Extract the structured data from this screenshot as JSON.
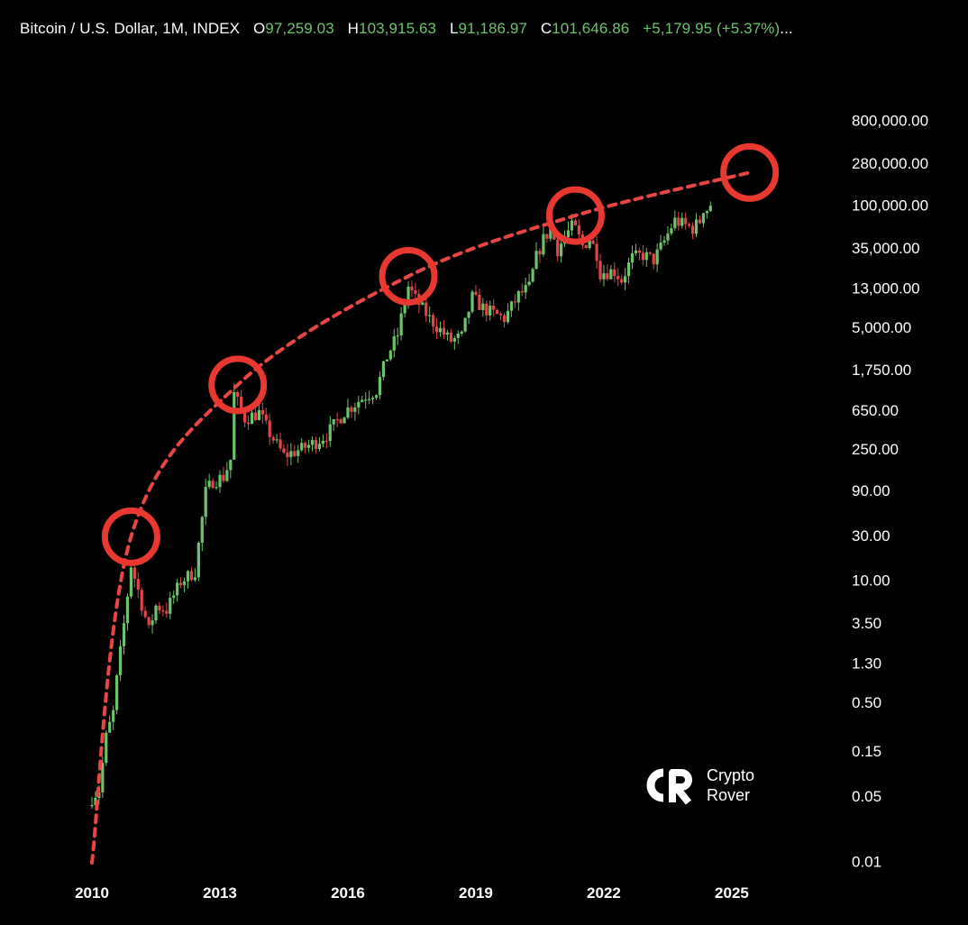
{
  "header": {
    "title": "Bitcoin / U.S. Dollar, 1M, INDEX",
    "open_label": "O",
    "open": "97,259.03",
    "high_label": "H",
    "high": "103,915.63",
    "low_label": "L",
    "low": "91,186.97",
    "close_label": "C",
    "close": "101,646.86",
    "change": "+5,179.95 (+5.37%)",
    "more": "..."
  },
  "logo": {
    "line1": "Crypto",
    "line2": "Rover"
  },
  "colors": {
    "background": "#000000",
    "up": "#6cc36a",
    "down": "#e0464a",
    "curve": "#e84545",
    "circle": "#e8382f"
  },
  "chart_data": {
    "type": "candlestick",
    "scale": "log",
    "grid": false,
    "x_tick_labels": [
      "2010",
      "2013",
      "2016",
      "2019",
      "2022",
      "2025"
    ],
    "y_tick_labels": [
      "800,000.00",
      "280,000.00",
      "100,000.00",
      "35,000.00",
      "13,000.00",
      "5,000.00",
      "1,750.00",
      "650.00",
      "250.00",
      "90.00",
      "30.00",
      "10.00",
      "3.50",
      "1.30",
      "0.50",
      "0.15",
      "0.05",
      "0.01"
    ],
    "price_anchors": [
      [
        "2010-07",
        0.05
      ],
      [
        "2010-09",
        0.06
      ],
      [
        "2010-11",
        0.22
      ],
      [
        "2011-01",
        0.4
      ],
      [
        "2011-02",
        0.9
      ],
      [
        "2011-04",
        3.5
      ],
      [
        "2011-06",
        15
      ],
      [
        "2011-08",
        8
      ],
      [
        "2011-11",
        3
      ],
      [
        "2012-01",
        5.5
      ],
      [
        "2012-04",
        5
      ],
      [
        "2012-08",
        10
      ],
      [
        "2012-12",
        13
      ],
      [
        "2013-03",
        90
      ],
      [
        "2013-05",
        120
      ],
      [
        "2013-08",
        130
      ],
      [
        "2013-10",
        200
      ],
      [
        "2013-11",
        1000
      ],
      [
        "2014-02",
        550
      ],
      [
        "2014-06",
        630
      ],
      [
        "2014-09",
        380
      ],
      [
        "2015-01",
        220
      ],
      [
        "2015-06",
        260
      ],
      [
        "2015-10",
        310
      ],
      [
        "2016-01",
        370
      ],
      [
        "2016-06",
        650
      ],
      [
        "2016-12",
        960
      ],
      [
        "2017-03",
        1100
      ],
      [
        "2017-06",
        2500
      ],
      [
        "2017-09",
        4300
      ],
      [
        "2017-11",
        10000
      ],
      [
        "2017-12",
        14000
      ],
      [
        "2018-02",
        10300
      ],
      [
        "2018-06",
        6400
      ],
      [
        "2018-11",
        4000
      ],
      [
        "2018-12",
        3700
      ],
      [
        "2019-03",
        4100
      ],
      [
        "2019-06",
        10800
      ],
      [
        "2019-09",
        8300
      ],
      [
        "2019-12",
        7200
      ],
      [
        "2020-03",
        6400
      ],
      [
        "2020-07",
        11300
      ],
      [
        "2020-10",
        13800
      ],
      [
        "2020-12",
        29000
      ],
      [
        "2021-02",
        45000
      ],
      [
        "2021-04",
        57000
      ],
      [
        "2021-06",
        35000
      ],
      [
        "2021-08",
        47000
      ],
      [
        "2021-10",
        61000
      ],
      [
        "2021-11",
        57000
      ],
      [
        "2022-01",
        38000
      ],
      [
        "2022-03",
        45500
      ],
      [
        "2022-05",
        31800
      ],
      [
        "2022-06",
        19900
      ],
      [
        "2022-10",
        20500
      ],
      [
        "2022-12",
        16500
      ],
      [
        "2023-03",
        28500
      ],
      [
        "2023-06",
        30500
      ],
      [
        "2023-09",
        27000
      ],
      [
        "2023-12",
        42500
      ],
      [
        "2024-02",
        61000
      ],
      [
        "2024-03",
        71000
      ],
      [
        "2024-06",
        62700
      ],
      [
        "2024-08",
        59000
      ],
      [
        "2024-10",
        70000
      ],
      [
        "2024-11",
        96400
      ],
      [
        "2024-12",
        93400
      ],
      [
        "2025-01",
        101646.86
      ]
    ],
    "trend_curve": [
      [
        "2010-07",
        0.01
      ],
      [
        "2011-06",
        30
      ],
      [
        "2013-12",
        1250
      ],
      [
        "2017-12",
        18000
      ],
      [
        "2021-11",
        80000
      ],
      [
        "2025-12",
        230000
      ]
    ],
    "circled_points": [
      [
        "2011-06",
        30
      ],
      [
        "2013-12",
        1250
      ],
      [
        "2017-12",
        18000
      ],
      [
        "2021-11",
        80000
      ],
      [
        "2025-12",
        230000
      ]
    ]
  }
}
